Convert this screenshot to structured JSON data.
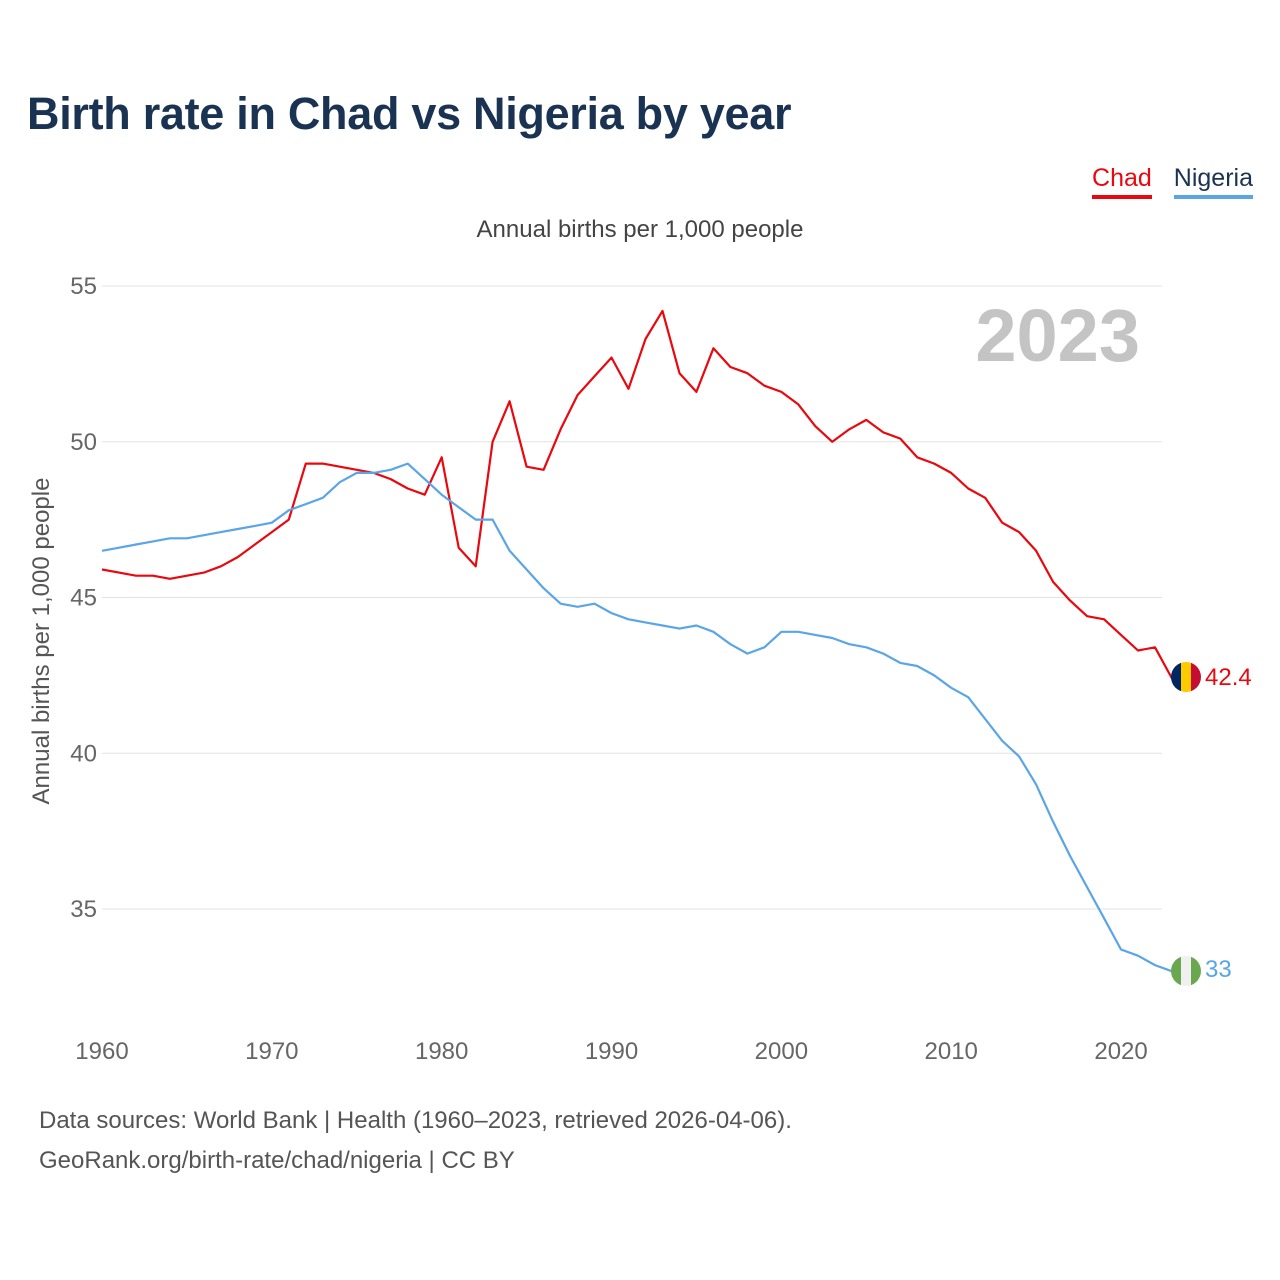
{
  "title": "Birth rate in Chad vs Nigeria by year",
  "legend": [
    "Chad",
    "Nigeria"
  ],
  "footer": {
    "line1": "Data sources: World Bank | Health (1960–2023, retrieved 2026-04-06).",
    "line2": "GeoRank.org/birth-rate/chad/nigeria | CC BY"
  },
  "chart_data": {
    "type": "line",
    "title": "Birth rate in Chad vs Nigeria by year",
    "subtitle": "Annual births per 1,000 people",
    "xlabel": "",
    "ylabel": "Annual births per 1,000 people",
    "year_label": "2023",
    "xlim": [
      1960,
      2023
    ],
    "ylim": [
      32,
      55
    ],
    "yticks": [
      35,
      40,
      45,
      50,
      55
    ],
    "xticks": [
      1960,
      1970,
      1980,
      1990,
      2000,
      2010,
      2020
    ],
    "grid": true,
    "legend_position": "top-right",
    "x": [
      1960,
      1961,
      1962,
      1963,
      1964,
      1965,
      1966,
      1967,
      1968,
      1969,
      1970,
      1971,
      1972,
      1973,
      1974,
      1975,
      1976,
      1977,
      1978,
      1979,
      1980,
      1981,
      1982,
      1983,
      1984,
      1985,
      1986,
      1987,
      1988,
      1989,
      1990,
      1991,
      1992,
      1993,
      1994,
      1995,
      1996,
      1997,
      1998,
      1999,
      2000,
      2001,
      2002,
      2003,
      2004,
      2005,
      2006,
      2007,
      2008,
      2009,
      2010,
      2011,
      2012,
      2013,
      2014,
      2015,
      2016,
      2017,
      2018,
      2019,
      2020,
      2021,
      2022,
      2023
    ],
    "series": [
      {
        "name": "Chad",
        "color": "#e8080e",
        "end_label": "42.4",
        "values": [
          45.9,
          45.8,
          45.7,
          45.7,
          45.6,
          45.7,
          45.8,
          46.0,
          46.3,
          46.7,
          47.1,
          47.5,
          49.3,
          49.3,
          49.2,
          49.1,
          49.0,
          48.8,
          48.5,
          48.3,
          49.5,
          46.6,
          46.0,
          50.0,
          51.3,
          49.2,
          49.1,
          50.4,
          51.5,
          52.1,
          52.7,
          51.7,
          53.3,
          54.2,
          52.2,
          51.6,
          53.0,
          52.4,
          52.2,
          51.8,
          51.6,
          51.2,
          50.5,
          50.0,
          50.4,
          50.7,
          50.3,
          50.1,
          49.5,
          49.3,
          49.0,
          48.5,
          48.2,
          47.4,
          47.1,
          46.5,
          45.5,
          44.9,
          44.4,
          44.3,
          43.8,
          43.3,
          43.4,
          42.4
        ]
      },
      {
        "name": "Nigeria",
        "color": "#5aa5e6",
        "end_label": "33",
        "values": [
          46.5,
          46.6,
          46.7,
          46.8,
          46.9,
          46.9,
          47.0,
          47.1,
          47.2,
          47.3,
          47.4,
          47.8,
          48.0,
          48.2,
          48.7,
          49.0,
          49.0,
          49.1,
          49.3,
          48.8,
          48.3,
          47.9,
          47.5,
          47.5,
          46.5,
          45.9,
          45.3,
          44.8,
          44.7,
          44.8,
          44.5,
          44.3,
          44.2,
          44.1,
          44.0,
          44.1,
          43.9,
          43.5,
          43.2,
          43.4,
          43.9,
          43.9,
          43.8,
          43.7,
          43.5,
          43.4,
          43.2,
          42.9,
          42.8,
          42.5,
          42.1,
          41.8,
          41.1,
          40.4,
          39.9,
          39.0,
          37.8,
          36.7,
          35.7,
          34.7,
          33.7,
          33.5,
          33.2,
          33.0
        ]
      }
    ]
  }
}
